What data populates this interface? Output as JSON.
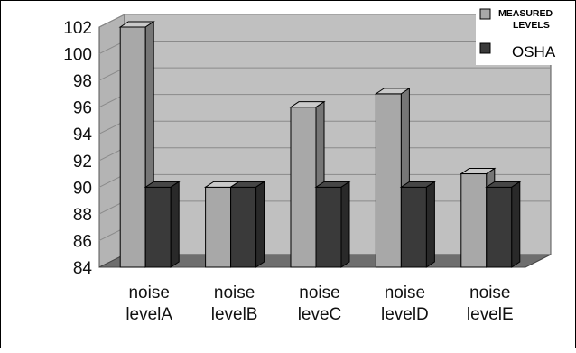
{
  "chart_data": {
    "type": "bar",
    "categories": [
      "noise levelA",
      "noise levelB",
      "noise leveC",
      "noise levelD",
      "noise levelE"
    ],
    "category_lines": [
      [
        "noise",
        "levelA"
      ],
      [
        "noise",
        "levelB"
      ],
      [
        "noise",
        "leveC"
      ],
      [
        "noise",
        "levelD"
      ],
      [
        "noise",
        "levelE"
      ]
    ],
    "series": [
      {
        "name": "MEASURED LEVELS",
        "legend_lines": [
          "MEASURED",
          "LEVELS"
        ],
        "values": [
          102,
          90,
          96,
          97,
          91
        ],
        "color": "#a8a8a8"
      },
      {
        "name": "OSHA",
        "legend_lines": [
          "OSHA"
        ],
        "values": [
          90,
          90,
          90,
          90,
          90
        ],
        "color": "#3a3a3a"
      }
    ],
    "ylim": [
      84,
      102
    ],
    "yticks": [
      84,
      86,
      88,
      90,
      92,
      94,
      96,
      98,
      100,
      102
    ],
    "grid": true,
    "legend_position": "top-right",
    "style": "3d",
    "colors": {
      "wall": "#c0c0c0",
      "floor": "#6e6e6e",
      "gridline": "#8a8a8a"
    }
  }
}
